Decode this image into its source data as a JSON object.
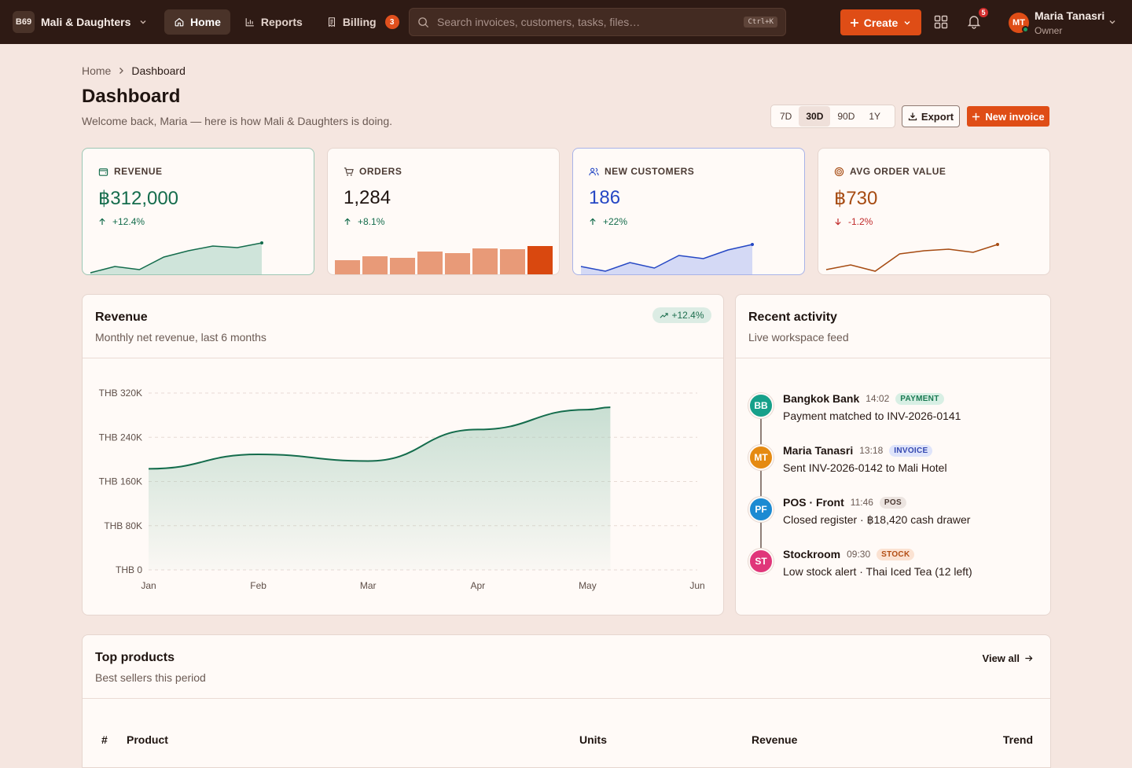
{
  "topbar": {
    "org_badge": "B69",
    "org_name": "Mali & Daughters",
    "nav": [
      {
        "label": "Home",
        "icon": "home-icon",
        "active": true
      },
      {
        "label": "Reports",
        "icon": "bar-chart-icon",
        "active": false
      },
      {
        "label": "Billing",
        "icon": "receipt-icon",
        "active": false,
        "badge": "3"
      }
    ],
    "search_placeholder": "Search invoices, customers, tasks, files…",
    "search_shortcut": "Ctrl+K",
    "create_label": "Create",
    "notifications_count": "5",
    "user": {
      "initials": "MT",
      "name": "Maria Tanasri",
      "role": "Owner"
    }
  },
  "header": {
    "breadcrumb": [
      "Home",
      "Dashboard"
    ],
    "title": "Dashboard",
    "subtitle": "Welcome back, Maria — here is how Mali & Daughters is doing.",
    "ranges": [
      "7D",
      "30D",
      "90D",
      "1Y"
    ],
    "selected_range": "30D",
    "export_label": "Export",
    "new_invoice_label": "New invoice"
  },
  "kpis": [
    {
      "label": "REVENUE",
      "icon": "wallet-icon",
      "value": "฿312,000",
      "delta": "+12.4%",
      "direction": "up",
      "color": "#146c4c",
      "spark": [
        2,
        10,
        6,
        22,
        30,
        36,
        34,
        40
      ]
    },
    {
      "label": "ORDERS",
      "icon": "cart-icon",
      "value": "1,284",
      "delta": "+8.1%",
      "direction": "up",
      "color": "#146c4c",
      "bars": [
        20,
        25,
        23,
        31,
        29,
        35,
        34,
        38
      ]
    },
    {
      "label": "NEW CUSTOMERS",
      "icon": "users-icon",
      "value": "186",
      "delta": "+22%",
      "direction": "up",
      "color": "#2547c4",
      "spark": [
        10,
        4,
        15,
        8,
        24,
        20,
        31,
        38
      ]
    },
    {
      "label": "AVG ORDER VALUE",
      "icon": "target-icon",
      "value": "฿730",
      "delta": "-1.2%",
      "direction": "down",
      "color": "#a64b12",
      "spark": [
        6,
        12,
        4,
        26,
        30,
        32,
        28,
        38
      ]
    }
  ],
  "revenue": {
    "title": "Revenue",
    "subtitle": "Monthly net revenue, last 6 months",
    "trend": "+12.4%"
  },
  "chart_data": {
    "type": "area",
    "categories": [
      "Jan",
      "Feb",
      "Mar",
      "Apr",
      "May",
      "Jun"
    ],
    "values": [
      183000,
      209000,
      197000,
      254000,
      290000,
      null
    ],
    "ylim": [
      0,
      320000
    ],
    "yticks": [
      "THB 0",
      "THB 80K",
      "THB 160K",
      "THB 240K",
      "THB 320K"
    ],
    "ytick_values": [
      0,
      80000,
      160000,
      240000,
      320000
    ],
    "grid": true,
    "color": "#146c4c"
  },
  "activity": {
    "title": "Recent activity",
    "subtitle": "Live workspace feed",
    "items": [
      {
        "initials": "BB",
        "name": "Bangkok Bank",
        "time": "14:02",
        "tag": "PAYMENT",
        "text": "Payment matched to INV-2026-0141",
        "avatar_color": "#16a08a",
        "tag_bg": "#d8efe4",
        "tag_fg": "#1b7a53"
      },
      {
        "initials": "MT",
        "name": "Maria Tanasri",
        "time": "13:18",
        "tag": "INVOICE",
        "text": "Sent INV-2026-0142 to Mali Hotel",
        "avatar_color": "#e58a12",
        "tag_bg": "#dfe4fa",
        "tag_fg": "#3548b0"
      },
      {
        "initials": "PF",
        "name": "POS · Front",
        "time": "11:46",
        "tag": "POS",
        "text": "Closed register · ฿18,420 cash drawer",
        "avatar_color": "#1b8ad2",
        "tag_bg": "#ece4e0",
        "tag_fg": "#4b3a33"
      },
      {
        "initials": "ST",
        "name": "Stockroom",
        "time": "09:30",
        "tag": "STOCK",
        "text": "Low stock alert · Thai Iced Tea (12 left)",
        "avatar_color": "#e0367a",
        "tag_bg": "#fbe2d2",
        "tag_fg": "#b24d13"
      }
    ]
  },
  "products": {
    "title": "Top products",
    "subtitle": "Best sellers this period",
    "view_all": "View all",
    "columns": [
      "#",
      "Product",
      "Units",
      "Revenue",
      "Trend"
    ]
  }
}
